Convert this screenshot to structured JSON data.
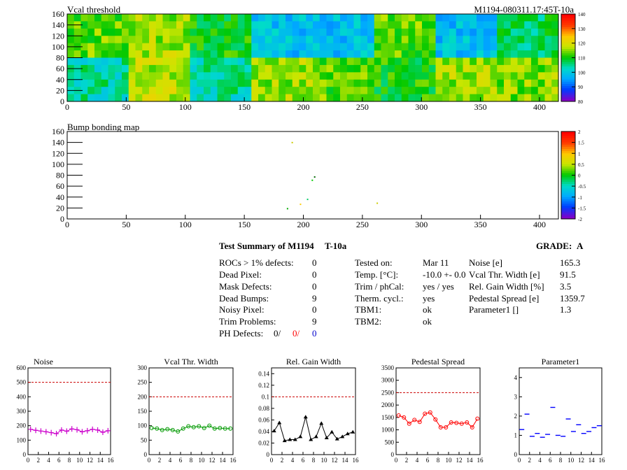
{
  "vcal_map": {
    "title": "Vcal threshold",
    "module_id": "M1194-080311.17:45T-10a",
    "x_ticks": [
      "0",
      "50",
      "100",
      "150",
      "200",
      "250",
      "300",
      "350",
      "400"
    ],
    "y_ticks": [
      "0",
      "20",
      "40",
      "60",
      "80",
      "100",
      "120",
      "140",
      "160"
    ],
    "palette_ticks": [
      "140",
      "130",
      "120",
      "110",
      "100",
      "90",
      "80"
    ]
  },
  "bump_map": {
    "title": "Bump bonding map",
    "x_ticks": [
      "0",
      "50",
      "100",
      "150",
      "200",
      "250",
      "300",
      "350",
      "400"
    ],
    "y_ticks": [
      "0",
      "20",
      "40",
      "60",
      "80",
      "100",
      "120",
      "140",
      "160"
    ],
    "palette_ticks": [
      "2",
      "1.5",
      "1",
      "0.5",
      "0",
      "-0.5",
      "-1",
      "-1.5",
      "-2"
    ]
  },
  "summary": {
    "title": "Test Summary of M1194",
    "temp_tag": "T-10a",
    "grade_label": "GRADE:",
    "grade": "A",
    "left": [
      {
        "label": "ROCs > 1% defects:",
        "value": "0"
      },
      {
        "label": "Dead Pixel:",
        "value": "0"
      },
      {
        "label": "Mask Defects:",
        "value": "0"
      },
      {
        "label": "Dead Bumps:",
        "value": "9"
      },
      {
        "label": "Noisy Pixel:",
        "value": "0"
      },
      {
        "label": "Trim Problems:",
        "value": "9"
      }
    ],
    "ph_label": "PH Defects:",
    "ph_values": [
      "0/",
      "0/",
      "0"
    ],
    "ph_colors": [
      "#000000",
      "#ff0000",
      "#0000cc"
    ],
    "middle": [
      {
        "label": "Tested on:",
        "value": "Mar 11"
      },
      {
        "label": "Temp. [°C]:",
        "value": "-10.0 +- 0.0"
      },
      {
        "label": "Trim / phCal:",
        "value": "yes / yes"
      },
      {
        "label": "Therm. cycl.:",
        "value": "yes"
      },
      {
        "label": "TBM1:",
        "value": "ok"
      },
      {
        "label": "TBM2:",
        "value": "ok"
      }
    ],
    "right": [
      {
        "label": "Noise [e]",
        "value": "165.3"
      },
      {
        "label": "Vcal Thr. Width [e]",
        "value": "91.5"
      },
      {
        "label": "Rel. Gain Width [%]",
        "value": "3.5"
      },
      {
        "label": "Pedestal Spread [e]",
        "value": "1359.7"
      },
      {
        "label": "Parameter1 []",
        "value": "1.3"
      }
    ]
  },
  "chart_data": [
    {
      "type": "line",
      "title": "Noise",
      "color": "#cc00cc",
      "marker": "cross",
      "x": [
        0,
        1,
        2,
        3,
        4,
        5,
        6,
        7,
        8,
        9,
        10,
        11,
        12,
        13,
        14,
        15
      ],
      "values": [
        175,
        168,
        163,
        158,
        152,
        145,
        170,
        162,
        178,
        172,
        158,
        165,
        175,
        170,
        155,
        165
      ],
      "ylim": [
        0,
        600
      ],
      "yticks": [
        0,
        100,
        200,
        300,
        400,
        500,
        600
      ],
      "limit": 500,
      "xticks": [
        0,
        2,
        4,
        6,
        8,
        10,
        12,
        14,
        16
      ]
    },
    {
      "type": "line",
      "title": "Vcal Thr. Width",
      "color": "#009900",
      "marker": "circle",
      "x": [
        0,
        1,
        2,
        3,
        4,
        5,
        6,
        7,
        8,
        9,
        10,
        11,
        12,
        13,
        14,
        15
      ],
      "values": [
        92,
        90,
        85,
        88,
        85,
        80,
        90,
        98,
        95,
        98,
        92,
        100,
        90,
        92,
        90,
        90
      ],
      "ylim": [
        0,
        300
      ],
      "yticks": [
        0,
        50,
        100,
        150,
        200,
        250,
        300
      ],
      "limit": 200,
      "xticks": [
        0,
        2,
        4,
        6,
        8,
        10,
        12,
        14,
        16
      ]
    },
    {
      "type": "line",
      "title": "Rel. Gain Width",
      "color": "#000000",
      "marker": "triangle",
      "x": [
        0,
        1,
        2,
        3,
        4,
        5,
        6,
        7,
        8,
        9,
        10,
        11,
        12,
        13,
        14,
        15
      ],
      "values": [
        0.041,
        0.055,
        0.024,
        0.026,
        0.026,
        0.031,
        0.065,
        0.026,
        0.031,
        0.054,
        0.029,
        0.039,
        0.027,
        0.031,
        0.036,
        0.039
      ],
      "ylim": [
        0,
        0.15
      ],
      "yticks": [
        0,
        0.02,
        0.04,
        0.06,
        0.08,
        0.1,
        0.12,
        0.14
      ],
      "limit": 0.1,
      "xticks": [
        0,
        2,
        4,
        6,
        8,
        10,
        12,
        14,
        16
      ]
    },
    {
      "type": "line",
      "title": "Pedestal Spread",
      "color": "#ff0000",
      "marker": "circle",
      "x": [
        0,
        1,
        2,
        3,
        4,
        5,
        6,
        7,
        8,
        9,
        10,
        11,
        12,
        13,
        14,
        15
      ],
      "values": [
        1580,
        1500,
        1250,
        1400,
        1320,
        1650,
        1700,
        1420,
        1100,
        1100,
        1300,
        1280,
        1250,
        1300,
        1100,
        1450
      ],
      "ylim": [
        0,
        3500
      ],
      "yticks": [
        0,
        500,
        1000,
        1500,
        2000,
        2500,
        3000,
        3500
      ],
      "limit": 2500,
      "xticks": [
        0,
        2,
        4,
        6,
        8,
        10,
        12,
        14,
        16
      ]
    },
    {
      "type": "scatter",
      "title": "Parameter1",
      "color": "#0000ff",
      "marker": "hbar",
      "x": [
        0,
        1,
        2,
        3,
        4,
        5,
        6,
        7,
        8,
        9,
        10,
        11,
        12,
        13,
        14,
        15
      ],
      "values": [
        1.3,
        2.1,
        0.95,
        1.1,
        0.9,
        1.05,
        2.45,
        1.0,
        0.95,
        1.85,
        1.2,
        1.55,
        1.1,
        1.2,
        1.4,
        1.5
      ],
      "ylim": [
        0,
        4.5
      ],
      "yticks": [
        0,
        1,
        2,
        3,
        4
      ],
      "limit": null,
      "xticks": [
        0,
        2,
        4,
        6,
        8,
        10,
        12,
        14,
        16
      ]
    }
  ]
}
